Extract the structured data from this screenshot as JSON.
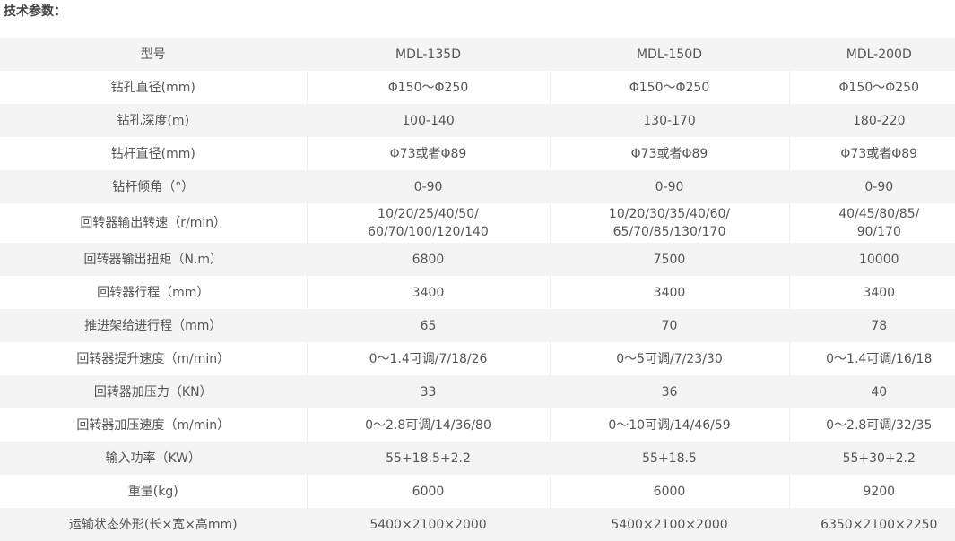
{
  "title": "技术参数：",
  "table": {
    "rows": [
      [
        "型号",
        "MDL-135D",
        "MDL-150D",
        "MDL-200D"
      ],
      [
        "钻孔直径(mm)",
        "Φ150～Φ250",
        "Φ150～Φ250",
        "Φ150～Φ250"
      ],
      [
        "钻孔深度(m)",
        "100-140",
        "130-170",
        "180-220"
      ],
      [
        "钻杆直径(mm)",
        "Φ73或者Φ89",
        "Φ73或者Φ89",
        "Φ73或者Φ89"
      ],
      [
        "钻杆倾角（°）",
        "0-90",
        "0-90",
        "0-90"
      ],
      [
        "回转器输出转速（r/min）",
        "10/20/25/40/50/\n60/70/100/120/140",
        "10/20/30/35/40/60/\n65/70/85/130/170",
        "40/45/80/85/\n90/170"
      ],
      [
        "回转器输出扭矩（N.m）",
        "6800",
        "7500",
        "10000"
      ],
      [
        "回转器行程（mm）",
        "3400",
        "3400",
        "3400"
      ],
      [
        "推进架给进行程（mm）",
        "65",
        "70",
        "78"
      ],
      [
        "回转器提升速度（m/min）",
        "0～1.4可调/7/18/26",
        "0～5可调/7/23/30",
        "0～1.4可调/16/18"
      ],
      [
        "回转器加压力（KN）",
        "33",
        "36",
        "40"
      ],
      [
        "回转器加压速度（m/min）",
        "0～2.8可调/14/36/80",
        "0～10可调/14/46/59",
        "0～2.8可调/32/35"
      ],
      [
        "输入功率（KW）",
        "55+18.5+2.2",
        "55+18.5",
        "55+30+2.2"
      ],
      [
        "重量(kg)",
        "6000",
        "6000",
        "9200"
      ],
      [
        "运输状态外形(长×宽×高mm)",
        "5400×2100×2000",
        "5400×2100×2000",
        "6350×2100×2250"
      ]
    ]
  }
}
